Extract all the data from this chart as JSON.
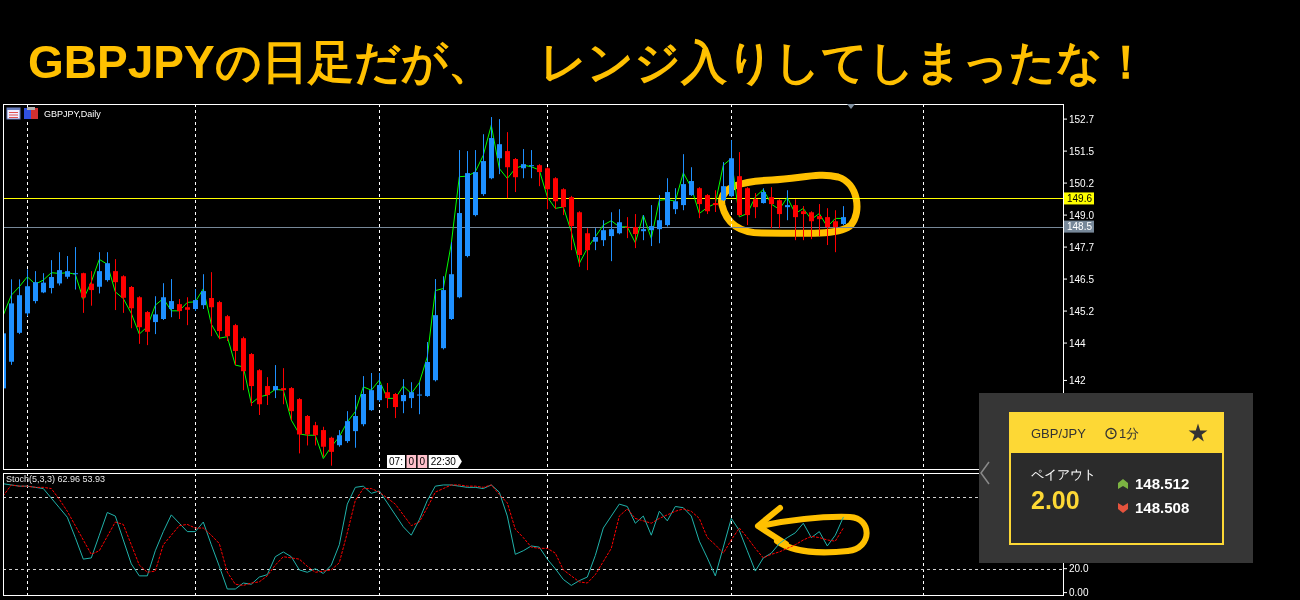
{
  "chart_data": [
    {
      "type": "candlestick",
      "title": "GBPJPYの日足だが、　レンジ入りしてしまったな！",
      "subtitle": "GBPJPY,Daily",
      "categories": [
        null,
        null,
        null,
        null,
        null,
        null,
        null,
        null,
        null,
        null,
        null,
        null,
        null,
        null,
        null,
        null,
        null,
        null,
        null,
        null,
        null,
        null,
        null,
        null,
        null,
        null,
        null,
        null,
        null,
        null,
        null,
        null,
        null,
        null,
        null,
        null,
        null,
        null,
        null,
        null,
        null,
        null,
        null,
        null,
        null,
        null,
        null,
        null,
        null,
        null,
        null,
        null,
        null,
        null,
        null,
        null,
        null,
        null,
        null,
        null,
        null,
        null,
        null,
        null,
        null,
        null,
        null,
        null,
        null,
        null,
        null,
        null,
        null,
        null,
        null,
        null,
        null,
        null,
        null,
        null,
        null,
        null,
        null,
        null,
        null,
        null,
        null,
        null,
        null,
        null,
        null,
        null,
        null,
        null,
        null,
        null,
        null,
        null,
        null,
        null,
        null,
        null,
        null,
        null,
        null,
        null
      ],
      "ohlc": [
        [
          142.18,
          144.4,
          142.1,
          144.33
        ],
        [
          143.22,
          146.44,
          143.1,
          145.5
        ],
        [
          144.35,
          146.44,
          144.3,
          145.82
        ],
        [
          145.11,
          146.83,
          145.0,
          146.17
        ],
        [
          145.59,
          146.76,
          145.5,
          146.33
        ],
        [
          145.93,
          146.68,
          145.9,
          146.31
        ],
        [
          146.1,
          147.19,
          145.89,
          146.53
        ],
        [
          146.28,
          147.5,
          146.2,
          146.8
        ],
        [
          146.54,
          147.35,
          146.46,
          146.76
        ],
        [
          146.66,
          147.7,
          146.04,
          146.68
        ],
        [
          146.68,
          146.7,
          145.13,
          145.73
        ],
        [
          146.27,
          146.76,
          145.41,
          146.02
        ],
        [
          146.15,
          147.5,
          145.89,
          146.76
        ],
        [
          146.41,
          147.5,
          146.35,
          147.07
        ],
        [
          146.76,
          147.23,
          145.24,
          146.33
        ],
        [
          146.56,
          146.6,
          145.13,
          145.72
        ],
        [
          146.14,
          146.18,
          144.53,
          145.31
        ],
        [
          145.74,
          145.78,
          143.92,
          144.57
        ],
        [
          145.16,
          145.2,
          143.87,
          144.39
        ],
        [
          144.77,
          145.78,
          144.3,
          145.07
        ],
        [
          144.89,
          146.29,
          144.85,
          145.74
        ],
        [
          145.28,
          146.45,
          144.96,
          145.59
        ],
        [
          145.47,
          145.67,
          144.89,
          145.2
        ],
        [
          145.35,
          145.74,
          144.65,
          145.25
        ],
        [
          145.28,
          146.06,
          145.2,
          145.63
        ],
        [
          145.43,
          146.64,
          145.28,
          145.98
        ],
        [
          145.71,
          146.72,
          144.22,
          145.35
        ],
        [
          145.55,
          145.6,
          144.1,
          144.42
        ],
        [
          145.0,
          145.05,
          144.03,
          144.22
        ],
        [
          144.65,
          144.7,
          143.09,
          143.64
        ],
        [
          144.14,
          144.2,
          142.11,
          142.85
        ],
        [
          143.52,
          143.56,
          141.49,
          142.27
        ],
        [
          142.89,
          142.93,
          141.14,
          141.56
        ],
        [
          142.27,
          142.62,
          141.53,
          141.92
        ],
        [
          142.11,
          143.09,
          141.8,
          142.27
        ],
        [
          142.19,
          142.97,
          141.56,
          142.11
        ],
        [
          142.19,
          142.23,
          140.94,
          141.29
        ],
        [
          141.76,
          141.8,
          139.64,
          140.38
        ],
        [
          141.1,
          141.14,
          139.95,
          140.38
        ],
        [
          140.74,
          140.87,
          139.95,
          140.35
        ],
        [
          140.55,
          140.68,
          139.51,
          139.9
        ],
        [
          140.25,
          140.29,
          139.16,
          139.7
        ],
        [
          139.96,
          140.55,
          139.9,
          140.35
        ],
        [
          140.12,
          141.29,
          140.05,
          140.9
        ],
        [
          140.51,
          141.92,
          139.86,
          141.1
        ],
        [
          140.78,
          142.66,
          140.7,
          141.96
        ],
        [
          141.33,
          142.78,
          141.3,
          142.11
        ],
        [
          141.72,
          142.78,
          141.65,
          142.31
        ],
        [
          142.03,
          142.39,
          141.41,
          141.8
        ],
        [
          141.96,
          142.0,
          141.02,
          141.45
        ],
        [
          141.68,
          142.54,
          141.21,
          141.92
        ],
        [
          141.8,
          142.42,
          141.41,
          142.03
        ],
        [
          141.9,
          142.42,
          141.17,
          141.94
        ],
        [
          141.88,
          143.99,
          141.85,
          143.21
        ],
        [
          142.5,
          146.45,
          142.45,
          145.04
        ],
        [
          143.75,
          146.56,
          143.7,
          146.02
        ],
        [
          144.89,
          147.89,
          144.85,
          146.64
        ],
        [
          145.74,
          151.49,
          145.7,
          149.03
        ],
        [
          147.35,
          151.45,
          147.3,
          150.59
        ],
        [
          148.95,
          151.49,
          148.9,
          150.63
        ],
        [
          149.77,
          152.11,
          149.7,
          151.06
        ],
        [
          150.39,
          152.78,
          150.35,
          151.96
        ],
        [
          151.17,
          152.7,
          150.55,
          151.72
        ],
        [
          151.45,
          152.19,
          149.61,
          150.82
        ],
        [
          151.14,
          151.18,
          149.85,
          150.43
        ],
        [
          150.78,
          151.53,
          150.39,
          150.94
        ],
        [
          150.88,
          151.49,
          150.39,
          150.9
        ],
        [
          150.9,
          150.94,
          150.08,
          150.63
        ],
        [
          150.78,
          150.82,
          149.18,
          149.96
        ],
        [
          150.39,
          150.43,
          149.18,
          149.49
        ],
        [
          149.96,
          150.0,
          148.95,
          149.26
        ],
        [
          149.65,
          149.7,
          147.58,
          148.52
        ],
        [
          149.06,
          149.1,
          146.93,
          147.39
        ],
        [
          148.24,
          148.44,
          146.8,
          147.58
        ],
        [
          147.91,
          148.44,
          147.58,
          148.09
        ],
        [
          147.97,
          148.75,
          147.74,
          148.36
        ],
        [
          148.13,
          149.06,
          147.15,
          148.4
        ],
        [
          148.24,
          149.18,
          148.2,
          148.67
        ],
        [
          148.49,
          148.87,
          148.05,
          148.45
        ],
        [
          148.48,
          148.99,
          147.66,
          148.21
        ],
        [
          148.32,
          148.95,
          147.97,
          148.4
        ],
        [
          148.36,
          149.34,
          147.74,
          148.52
        ],
        [
          148.4,
          149.73,
          147.85,
          148.75
        ],
        [
          148.56,
          150.39,
          148.5,
          149.85
        ],
        [
          149.18,
          150.0,
          148.99,
          149.49
        ],
        [
          149.34,
          151.33,
          149.14,
          150.16
        ],
        [
          149.73,
          150.82,
          149.7,
          150.28
        ],
        [
          150.0,
          150.04,
          148.83,
          149.38
        ],
        [
          149.73,
          149.77,
          148.99,
          149.1
        ],
        [
          149.42,
          149.92,
          149.07,
          149.34
        ],
        [
          149.53,
          151.02,
          149.5,
          150.08
        ],
        [
          149.69,
          151.88,
          149.65,
          151.17
        ],
        [
          150.47,
          151.41,
          148.9,
          148.95
        ],
        [
          150.0,
          150.04,
          148.56,
          148.95
        ],
        [
          149.57,
          149.81,
          148.83,
          149.26
        ],
        [
          149.42,
          150.0,
          149.4,
          149.85
        ],
        [
          149.65,
          150.04,
          148.44,
          149.38
        ],
        [
          149.53,
          149.57,
          148.44,
          148.99
        ],
        [
          149.26,
          149.92,
          148.75,
          149.34
        ],
        [
          149.34,
          149.57,
          147.97,
          148.87
        ],
        [
          149.1,
          149.3,
          147.97,
          148.99
        ],
        [
          149.06,
          149.1,
          148.01,
          148.71
        ],
        [
          148.91,
          149.38,
          148.13,
          148.79
        ],
        [
          148.87,
          149.22,
          147.78,
          148.48
        ],
        [
          148.71,
          149.14,
          147.5,
          148.48
        ],
        [
          148.6,
          149.3,
          148.55,
          148.87
        ]
      ],
      "colors": [
        "#1e90ff",
        "#1e90ff",
        "#1e90ff",
        "#1e90ff",
        "#1e90ff",
        "#1e90ff",
        "#1e90ff",
        "#1e90ff",
        "#1e90ff",
        "#1e90ff",
        "#ff0000",
        "#ff0000",
        "#1e90ff",
        "#1e90ff",
        "#ff0000",
        "#ff0000",
        "#ff0000",
        "#ff0000",
        "#ff0000",
        "#1e90ff",
        "#1e90ff",
        "#1e90ff",
        "#ff0000",
        "#ff0000",
        "#1e90ff",
        "#1e90ff",
        "#ff0000",
        "#ff0000",
        "#ff0000",
        "#ff0000",
        "#ff0000",
        "#ff0000",
        "#ff0000",
        "#ff0000",
        "#1e90ff",
        "#ff0000",
        "#ff0000",
        "#ff0000",
        "#ff0000",
        "#ff0000",
        "#ff0000",
        "#ff0000",
        "#1e90ff",
        "#1e90ff",
        "#1e90ff",
        "#1e90ff",
        "#1e90ff",
        "#1e90ff",
        "#ff0000",
        "#ff0000",
        "#1e90ff",
        "#1e90ff",
        "#1e90ff",
        "#1e90ff",
        "#1e90ff",
        "#1e90ff",
        "#1e90ff",
        "#1e90ff",
        "#1e90ff",
        "#1e90ff",
        "#1e90ff",
        "#1e90ff",
        "#1e90ff",
        "#ff0000",
        "#ff0000",
        "#1e90ff",
        "#1e90ff",
        "#ff0000",
        "#ff0000",
        "#ff0000",
        "#ff0000",
        "#ff0000",
        "#ff0000",
        "#ff0000",
        "#1e90ff",
        "#1e90ff",
        "#1e90ff",
        "#1e90ff",
        "#ff0000",
        "#ff0000",
        "#1e90ff",
        "#1e90ff",
        "#1e90ff",
        "#1e90ff",
        "#1e90ff",
        "#1e90ff",
        "#1e90ff",
        "#ff0000",
        "#ff0000",
        "#ff0000",
        "#1e90ff",
        "#1e90ff",
        "#ff0000",
        "#ff0000",
        "#ff0000",
        "#1e90ff",
        "#ff0000",
        "#ff0000",
        "#1e90ff",
        "#ff0000",
        "#ff0000",
        "#ff0000",
        "#ff0000",
        "#ff0000",
        "#ff0000",
        "#1e90ff"
      ],
      "series": [
        {
          "type": "line",
          "color": "#00ff00",
          "values": [
            145.04,
            145.82,
            146.15,
            146.54,
            146.25,
            146.41,
            146.7,
            146.67,
            146.7,
            146.64,
            145.65,
            146.34,
            147.22,
            147.03,
            145.95,
            145.69,
            145.11,
            144.3,
            144.59,
            145.43,
            145.69,
            145.21,
            145.21,
            145.54,
            145.56,
            146.07,
            144.69,
            144.14,
            144.2,
            143.09,
            143.02,
            141.59,
            141.85,
            141.92,
            142.14,
            142.11,
            140.94,
            140.4,
            140.35,
            140.35,
            139.44,
            139.9,
            140.29,
            140.87,
            141.27,
            142.24,
            142.11,
            142.5,
            141.79,
            141.79,
            142.27,
            141.98,
            142.4,
            143.41,
            146.0,
            146.08,
            147.84,
            150.45,
            150.47,
            150.64,
            151.29,
            152.46,
            150.77,
            150.38,
            150.77,
            150.9,
            150.84,
            150.71,
            149.66,
            149.21,
            149.27,
            148.3,
            147.06,
            147.65,
            148.1,
            148.56,
            148.73,
            148.49,
            148.49,
            147.87,
            148.95,
            148.04,
            149.53,
            149.56,
            149.49,
            150.6,
            150.03,
            149.01,
            149.25,
            149.4,
            150.9,
            151.16,
            148.88,
            149.01,
            149.66,
            149.95,
            149.38,
            149.17,
            149.64,
            149.01,
            149.21,
            148.78,
            149.01,
            148.49,
            148.82,
            148.82
          ]
        }
      ],
      "ylim": [
        139.03,
        153.29
      ],
      "yticks": [
        152.7,
        {
          "value": 151.45,
          "label": "151.5"
        },
        150.2,
        {
          "value": 148.95,
          "label": "149.0"
        },
        147.7,
        {
          "value": 146.45,
          "label": "146.5"
        },
        145.2,
        {
          "value": 143.95,
          "label": "144"
        },
        {
          "value": 142.49,
          "label": "142"
        }
      ],
      "ref_lines": [
        {
          "axis": "y",
          "value": 149.6,
          "label": "149.6",
          "color": "#ffff00"
        },
        {
          "axis": "y",
          "value": 148.5,
          "label": "148.5",
          "color": "#778899"
        }
      ],
      "grid": "x",
      "tick_labels": "y",
      "annotations": [
        "07:",
        "0",
        "0",
        "22:30"
      ]
    },
    {
      "type": "line",
      "title": "Stoch(5,3,3) 62.96 53.93",
      "categories": [
        null,
        null,
        null,
        null,
        null,
        null,
        null,
        null,
        null,
        null,
        null,
        null,
        null,
        null,
        null,
        null,
        null,
        null,
        null,
        null,
        null,
        null,
        null,
        null,
        null,
        null,
        null,
        null,
        null,
        null,
        null,
        null,
        null,
        null,
        null,
        null,
        null,
        null,
        null,
        null,
        null,
        null,
        null,
        null,
        null,
        null,
        null,
        null,
        null,
        null,
        null,
        null,
        null,
        null,
        null,
        null,
        null,
        null,
        null,
        null,
        null,
        null,
        null,
        null,
        null,
        null,
        null,
        null,
        null,
        null,
        null,
        null,
        null,
        null,
        null,
        null,
        null,
        null,
        null,
        null,
        null,
        null,
        null,
        null,
        null,
        null,
        null,
        null,
        null,
        null,
        null,
        null,
        null,
        null,
        null,
        null,
        null,
        null,
        null,
        null,
        null,
        null,
        null,
        null,
        null,
        null
      ],
      "series": [
        {
          "color": "#20b2aa",
          "values": [
            91,
            90,
            89,
            89,
            88,
            87,
            79,
            71,
            63,
            46,
            28,
            29,
            48,
            67,
            64,
            44,
            24,
            14,
            14,
            35,
            51,
            65,
            58,
            51,
            51,
            59,
            40,
            22,
            3,
            3,
            8,
            7,
            13,
            15,
            30,
            34,
            30,
            19,
            17,
            20,
            16,
            23,
            40,
            74,
            88,
            89,
            83,
            85,
            75,
            65,
            55,
            48,
            61,
            77,
            89,
            90,
            90,
            89,
            88,
            88,
            87,
            90,
            84,
            64,
            32,
            35,
            39,
            38,
            28,
            20,
            11,
            6,
            10,
            13,
            31,
            54,
            64,
            74,
            72,
            58,
            64,
            48,
            68,
            60,
            72,
            71,
            64,
            43,
            29,
            14,
            38,
            62,
            52,
            35,
            18,
            29,
            33,
            41,
            46,
            50,
            58,
            46,
            51,
            39,
            48,
            62.96
          ]
        },
        {
          "color": "#ff0000",
          "line_style": "dotted",
          "values": [
            81,
            90,
            89,
            89,
            88,
            88,
            87,
            78,
            68,
            56,
            44,
            32,
            35,
            47,
            59,
            57,
            40,
            23,
            17,
            18,
            40,
            48,
            56,
            57,
            54,
            54,
            48,
            41,
            17,
            7,
            6,
            8,
            9,
            14,
            23,
            30,
            29,
            28,
            22,
            17,
            18,
            19,
            25,
            50,
            77,
            87,
            87,
            84,
            79,
            74,
            65,
            56,
            59,
            71,
            84,
            87,
            90,
            90,
            89,
            89,
            88,
            90,
            82,
            75,
            53,
            46,
            38,
            37,
            37,
            33,
            19,
            14,
            9,
            8,
            15,
            26,
            37,
            64,
            70,
            62,
            60,
            58,
            62,
            65,
            68,
            70,
            68,
            62,
            46,
            40,
            33,
            44,
            54,
            46,
            37,
            29,
            32,
            34,
            37,
            40,
            44,
            47,
            46,
            44,
            43,
            53.93
          ]
        }
      ],
      "ylim": [
        -2,
        100
      ],
      "yticks": [
        {
          "value": 0,
          "label": "0.00"
        },
        {
          "value": 20,
          "label": "20.0"
        }
      ],
      "ref_lines": [
        {
          "axis": "y",
          "value": 80,
          "color": "#d0d0d0",
          "line_style": "dashed"
        },
        {
          "axis": "y",
          "value": 20,
          "color": "#d0d0d0",
          "line_style": "dashed"
        }
      ],
      "grid": "x",
      "tick_labels": "y"
    },
    {
      "type": "other",
      "title": "GBP/JPY",
      "annotations": [
        "1分",
        "ペイアウト",
        "2.00",
        "148.512",
        "148.508"
      ]
    }
  ]
}
